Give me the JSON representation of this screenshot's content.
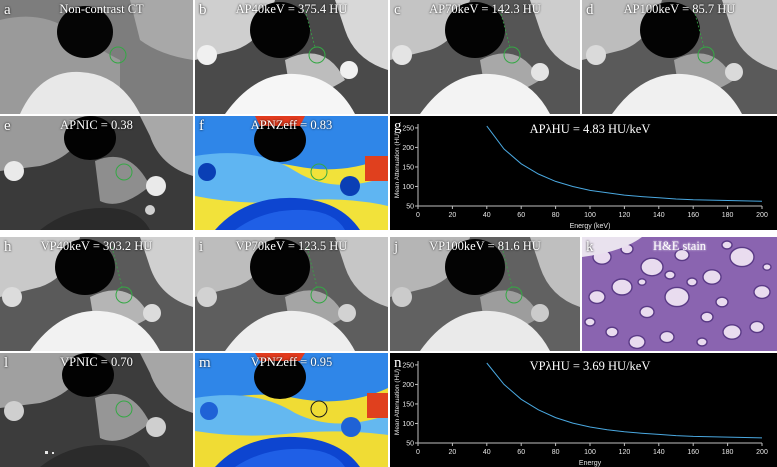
{
  "panels": {
    "a": {
      "letter": "a",
      "caption": "Non-contrast  CT"
    },
    "b": {
      "letter": "b",
      "caption": "AP40keV = 375.4 HU"
    },
    "c": {
      "letter": "c",
      "caption": "AP70keV = 142.3 HU"
    },
    "d": {
      "letter": "d",
      "caption": "AP100keV = 85.7 HU"
    },
    "e": {
      "letter": "e",
      "caption": "APNIC = 0.38"
    },
    "f": {
      "letter": "f",
      "caption": "APNZeff = 0.83"
    },
    "g": {
      "letter": "g"
    },
    "h": {
      "letter": "h",
      "caption": "VP40keV = 303.2 HU"
    },
    "i": {
      "letter": "i",
      "caption": "VP70keV = 123.5 HU"
    },
    "j": {
      "letter": "j",
      "caption": "VP100keV = 81.6 HU"
    },
    "k": {
      "letter": "k",
      "caption": "H&E stain"
    },
    "l": {
      "letter": "l",
      "caption": "VPNIC = 0.70"
    },
    "m": {
      "letter": "m",
      "caption": "VPNZeff = 0.95"
    },
    "n": {
      "letter": "n"
    }
  },
  "chart_data": [
    {
      "type": "line",
      "title": "APλHU = 4.83 HU/keV",
      "xlabel": "Energy (keV)",
      "ylabel": "Mean Attenuation (HU)",
      "xlim": [
        0,
        200
      ],
      "ylim": [
        50,
        260
      ],
      "xticks": [
        0,
        20,
        40,
        60,
        80,
        100,
        120,
        140,
        160,
        180,
        200
      ],
      "yticks": [
        50,
        100,
        150,
        200,
        250
      ],
      "series": [
        {
          "x": [
            40,
            50,
            60,
            70,
            80,
            90,
            100,
            110,
            120,
            130,
            140,
            150,
            160,
            170,
            180,
            190,
            200
          ],
          "y": [
            255,
            196,
            158,
            132,
            113,
            100,
            90,
            84,
            78,
            74,
            71,
            68,
            66,
            65,
            64,
            63,
            62
          ],
          "color": "#4aa8e0"
        }
      ],
      "grid": false
    },
    {
      "type": "line",
      "title": "VPλHU = 3.69 HU/keV",
      "xlabel": "Energy",
      "ylabel": "Mean Attenuation (HU)",
      "xlim": [
        0,
        200
      ],
      "ylim": [
        50,
        260
      ],
      "xticks": [
        0,
        20,
        40,
        60,
        80,
        100,
        120,
        140,
        160,
        180,
        200
      ],
      "yticks": [
        50,
        100,
        150,
        200,
        250
      ],
      "series": [
        {
          "x": [
            40,
            50,
            60,
            70,
            80,
            90,
            100,
            110,
            120,
            130,
            140,
            150,
            160,
            170,
            180,
            190,
            200
          ],
          "y": [
            255,
            200,
            162,
            135,
            115,
            101,
            91,
            84,
            79,
            75,
            72,
            69,
            67,
            66,
            65,
            64,
            63
          ],
          "color": "#4aa8e0"
        }
      ],
      "grid": false
    }
  ]
}
